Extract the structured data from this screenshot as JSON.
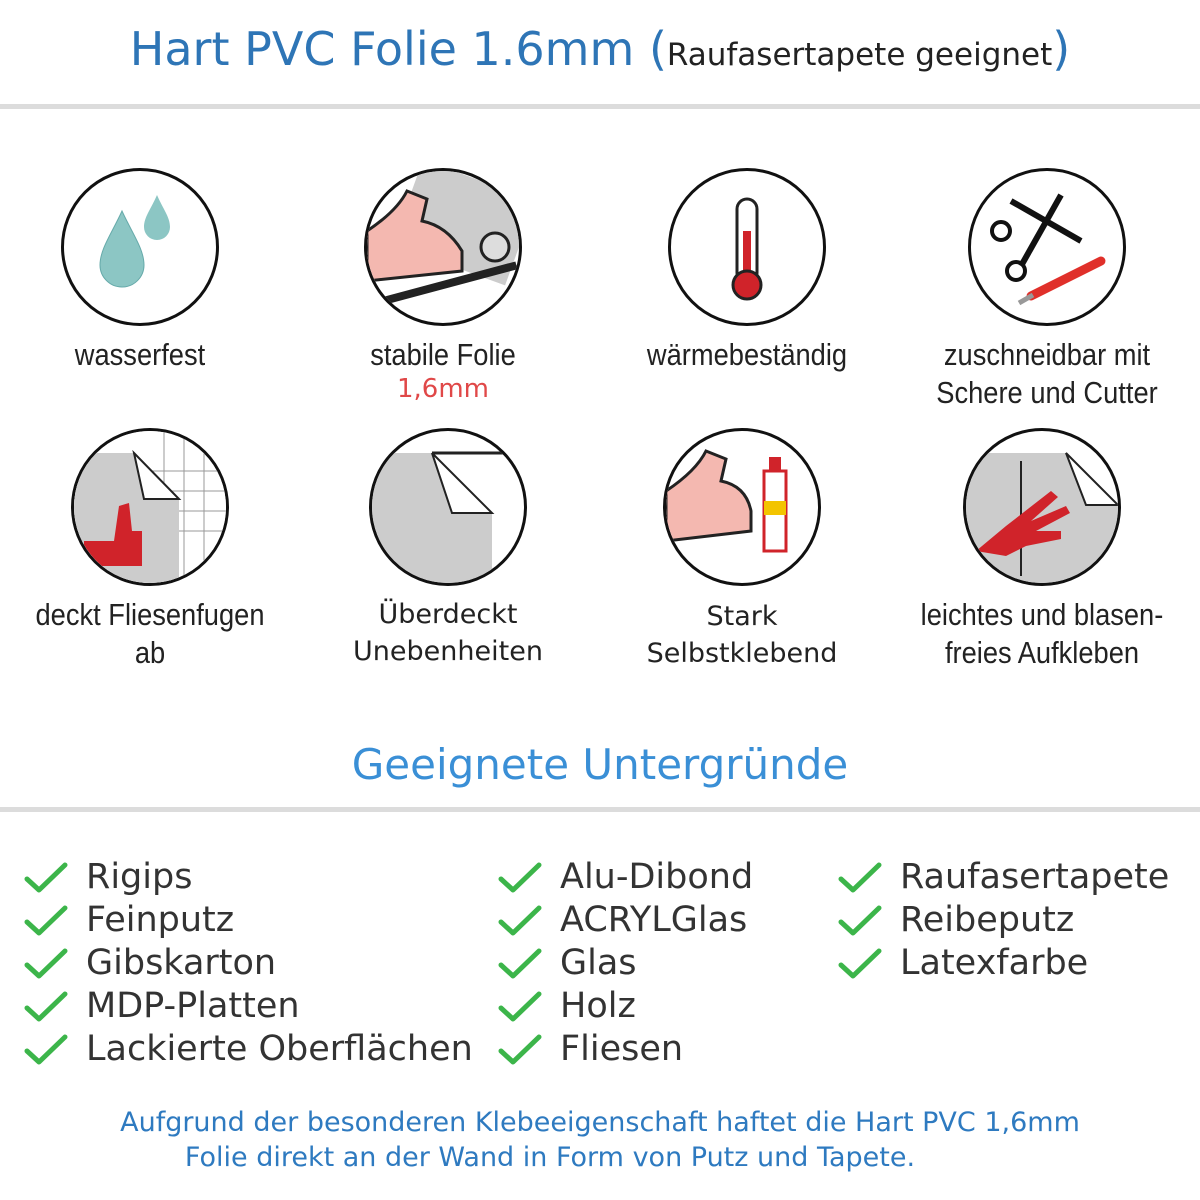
{
  "header": {
    "title": "Hart PVC Folie 1.6mm",
    "paren_open": "(",
    "subtitle": "Raufasertapete geeignet",
    "paren_close": ")"
  },
  "features": [
    {
      "icon": "water-drops-icon",
      "label": "wasserfest"
    },
    {
      "icon": "strong-arm-foil-icon",
      "label": "stabile Folie",
      "sublabel": "1,6mm"
    },
    {
      "icon": "thermometer-icon",
      "label": "wärmebeständig"
    },
    {
      "icon": "scissors-cutter-icon",
      "label": "zuschneidbar mit",
      "label2": "Schere und Cutter"
    },
    {
      "icon": "thumbs-up-tiles-icon",
      "label": "deckt Fliesenfugen ab"
    },
    {
      "icon": "foil-corner-icon",
      "label": "Überdeckt",
      "label2": "Unebenheiten"
    },
    {
      "icon": "arm-glue-icon",
      "label": "Stark",
      "label2": "Selbstklebend"
    },
    {
      "icon": "hand-smooth-icon",
      "label": "leichtes und blasen-",
      "label2": "freies Aufkleben"
    }
  ],
  "section": {
    "title": "Geeignete Untergründe"
  },
  "surfaces": {
    "col1": [
      "Rigips",
      "Feinputz",
      "Gibskarton",
      "MDP-Platten",
      "Lackierte Oberflächen"
    ],
    "col2": [
      "Alu-Dibond",
      "ACRYLGlas",
      "Glas",
      "Holz",
      "Fliesen"
    ],
    "col3": [
      "Raufasertapete",
      "Reibeputz",
      "Latexfarbe"
    ]
  },
  "footer": {
    "line1": "Aufgrund der besonderen Klebeeigenschaft haftet die Hart PVC 1,6mm",
    "line2": "Folie direkt an der Wand in Form von Putz und Tapete."
  },
  "colors": {
    "title": "#2e75b6",
    "section": "#3a8fd6",
    "check": "#3cb54a",
    "accent_red": "#e04848"
  }
}
